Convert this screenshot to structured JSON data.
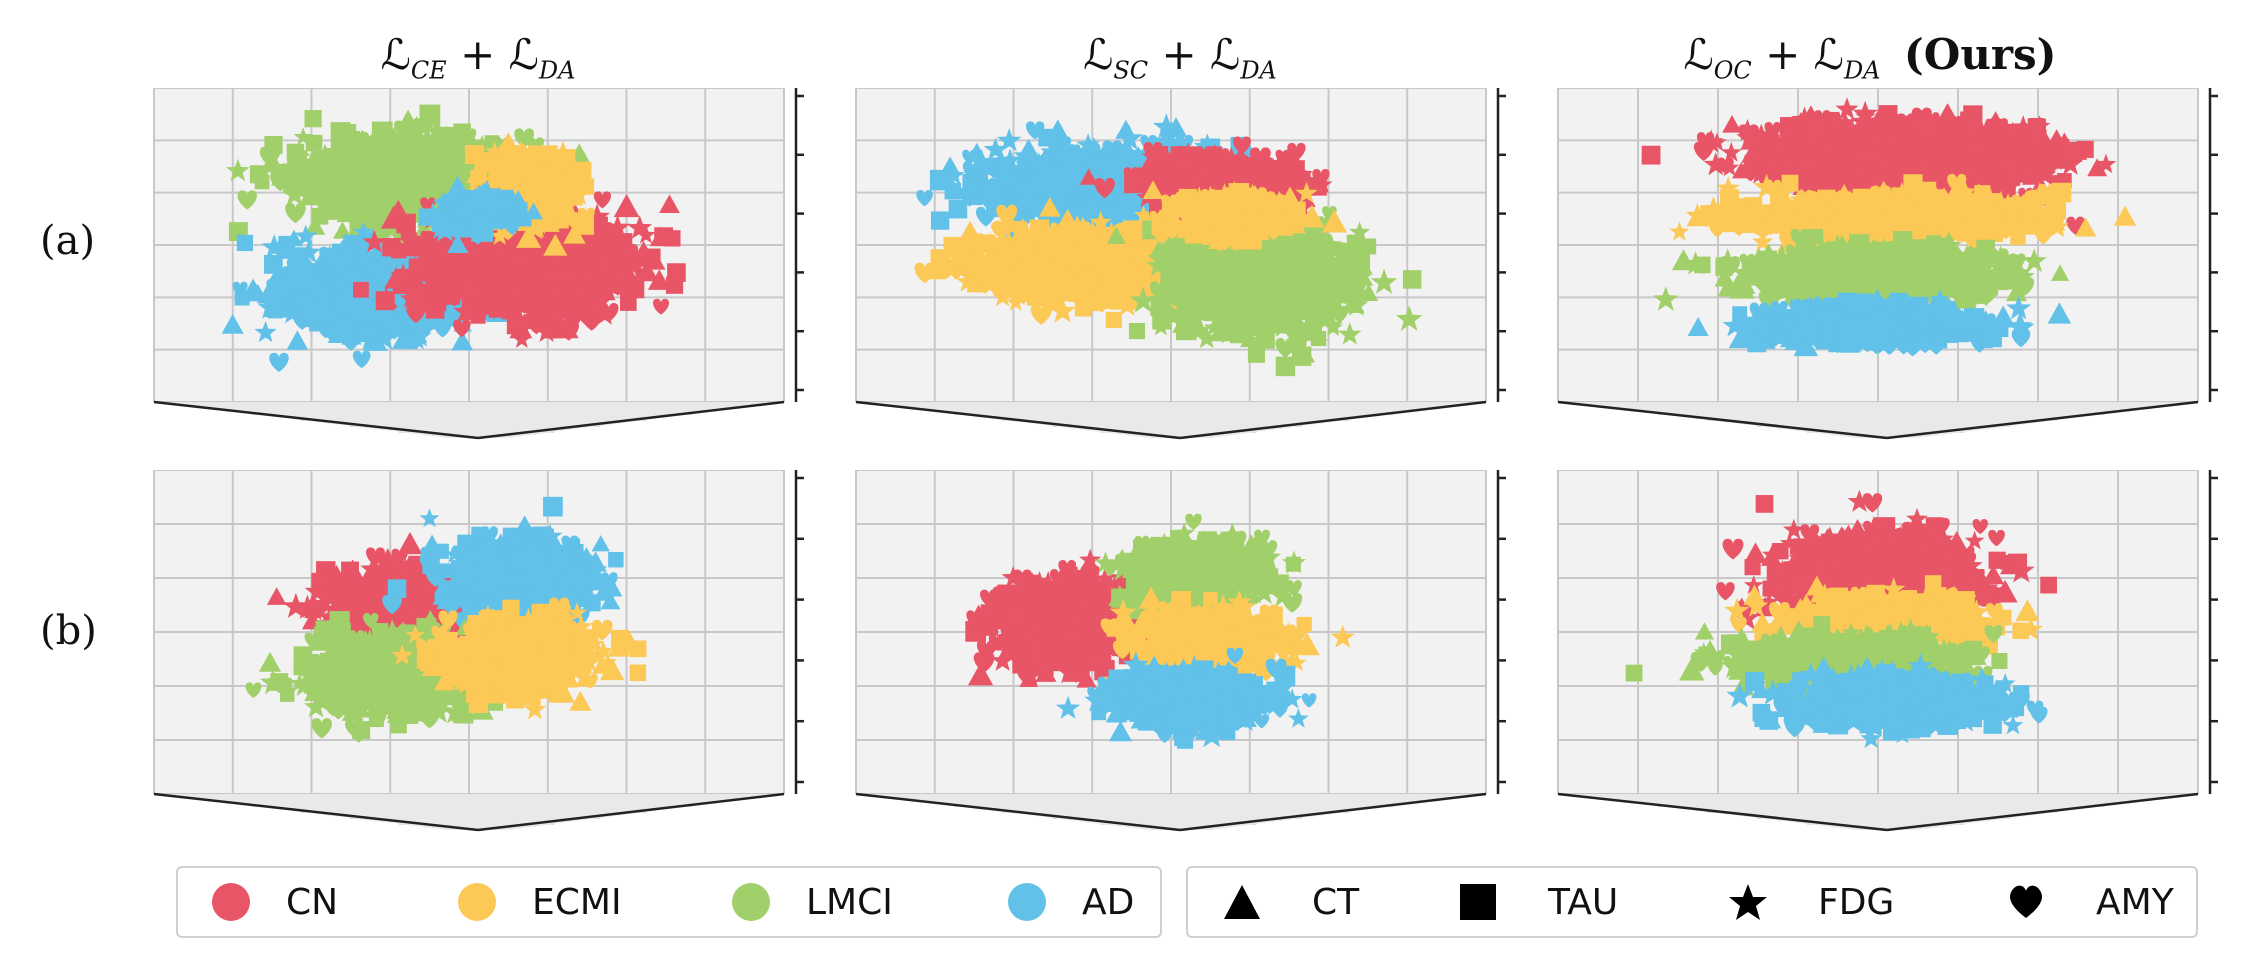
{
  "columns": [
    {
      "id": "ce",
      "title_main": "ℒ",
      "title_sub": "CE",
      "title_plus": "+ ℒ",
      "title_sub2": "DA",
      "title_bold": ""
    },
    {
      "id": "sc",
      "title_main": "ℒ",
      "title_sub": "SC",
      "title_plus": "+ ℒ",
      "title_sub2": "DA",
      "title_bold": ""
    },
    {
      "id": "oc",
      "title_main": "ℒ",
      "title_sub": "OC",
      "title_plus": "+ ℒ",
      "title_sub2": "DA",
      "title_bold": "(Ours)"
    }
  ],
  "rows": [
    {
      "id": "a",
      "label": "(a)"
    },
    {
      "id": "b",
      "label": "(b)"
    }
  ],
  "colors": {
    "CN": "#e85566",
    "ECMI": "#fcc956",
    "LMCI": "#a1cf6a",
    "AD": "#62c1e8",
    "grid": "#c8c8c8",
    "pane": "#f2f2f2",
    "axis": "#222222"
  },
  "legend": {
    "classes": [
      {
        "name": "CN",
        "color": "#e85566"
      },
      {
        "name": "ECMI",
        "color": "#fcc956"
      },
      {
        "name": "LMCI",
        "color": "#a1cf6a"
      },
      {
        "name": "AD",
        "color": "#62c1e8"
      }
    ],
    "modalities": [
      {
        "name": "CT",
        "icon": "triangle-icon"
      },
      {
        "name": "TAU",
        "icon": "square-icon"
      },
      {
        "name": "FDG",
        "icon": "star-icon"
      },
      {
        "name": "AMY",
        "icon": "heart-icon"
      }
    ]
  },
  "chart_data": [
    {
      "type": "scatter",
      "panel": "a-ce",
      "projection": "3d",
      "grid": true,
      "clusters": [
        {
          "class": "LMCI",
          "center": [
            0.38,
            0.28
          ],
          "spread": [
            0.17,
            0.12
          ]
        },
        {
          "class": "AD",
          "center": [
            0.32,
            0.68
          ],
          "spread": [
            0.14,
            0.12
          ]
        },
        {
          "class": "CN",
          "center": [
            0.62,
            0.58
          ],
          "spread": [
            0.16,
            0.15
          ]
        },
        {
          "class": "ECMI",
          "center": [
            0.62,
            0.32
          ],
          "spread": [
            0.07,
            0.1
          ]
        },
        {
          "class": "AD",
          "center": [
            0.52,
            0.4
          ],
          "spread": [
            0.06,
            0.05
          ]
        }
      ]
    },
    {
      "type": "scatter",
      "panel": "a-sc",
      "projection": "3d",
      "grid": true,
      "clusters": [
        {
          "class": "AD",
          "center": [
            0.38,
            0.3
          ],
          "spread": [
            0.2,
            0.1
          ]
        },
        {
          "class": "ECMI",
          "center": [
            0.38,
            0.58
          ],
          "spread": [
            0.2,
            0.1
          ]
        },
        {
          "class": "LMCI",
          "center": [
            0.67,
            0.62
          ],
          "spread": [
            0.14,
            0.16
          ]
        },
        {
          "class": "CN",
          "center": [
            0.6,
            0.3
          ],
          "spread": [
            0.12,
            0.08
          ]
        },
        {
          "class": "ECMI",
          "center": [
            0.62,
            0.42
          ],
          "spread": [
            0.1,
            0.06
          ]
        }
      ]
    },
    {
      "type": "scatter",
      "panel": "a-oc",
      "projection": "3d",
      "grid": true,
      "clusters": [
        {
          "class": "CN",
          "center": [
            0.55,
            0.2
          ],
          "spread": [
            0.23,
            0.1
          ]
        },
        {
          "class": "ECMI",
          "center": [
            0.52,
            0.42
          ],
          "spread": [
            0.22,
            0.07
          ]
        },
        {
          "class": "LMCI",
          "center": [
            0.5,
            0.62
          ],
          "spread": [
            0.2,
            0.07
          ]
        },
        {
          "class": "AD",
          "center": [
            0.48,
            0.8
          ],
          "spread": [
            0.18,
            0.06
          ]
        }
      ]
    },
    {
      "type": "scatter",
      "panel": "b-ce",
      "projection": "3d",
      "grid": true,
      "clusters": [
        {
          "class": "CN",
          "center": [
            0.38,
            0.42
          ],
          "spread": [
            0.13,
            0.1
          ]
        },
        {
          "class": "AD",
          "center": [
            0.6,
            0.35
          ],
          "spread": [
            0.11,
            0.12
          ]
        },
        {
          "class": "LMCI",
          "center": [
            0.36,
            0.65
          ],
          "spread": [
            0.13,
            0.11
          ]
        },
        {
          "class": "ECMI",
          "center": [
            0.6,
            0.6
          ],
          "spread": [
            0.12,
            0.1
          ]
        }
      ]
    },
    {
      "type": "scatter",
      "panel": "b-sc",
      "projection": "3d",
      "grid": true,
      "clusters": [
        {
          "class": "CN",
          "center": [
            0.33,
            0.48
          ],
          "spread": [
            0.13,
            0.12
          ]
        },
        {
          "class": "LMCI",
          "center": [
            0.55,
            0.32
          ],
          "spread": [
            0.1,
            0.1
          ]
        },
        {
          "class": "ECMI",
          "center": [
            0.57,
            0.55
          ],
          "spread": [
            0.12,
            0.08
          ]
        },
        {
          "class": "AD",
          "center": [
            0.55,
            0.75
          ],
          "spread": [
            0.12,
            0.08
          ]
        }
      ]
    },
    {
      "type": "scatter",
      "panel": "b-oc",
      "projection": "3d",
      "grid": true,
      "clusters": [
        {
          "class": "CN",
          "center": [
            0.5,
            0.33
          ],
          "spread": [
            0.15,
            0.12
          ]
        },
        {
          "class": "ECMI",
          "center": [
            0.52,
            0.48
          ],
          "spread": [
            0.15,
            0.07
          ]
        },
        {
          "class": "LMCI",
          "center": [
            0.45,
            0.62
          ],
          "spread": [
            0.18,
            0.07
          ]
        },
        {
          "class": "AD",
          "center": [
            0.52,
            0.75
          ],
          "spread": [
            0.17,
            0.07
          ]
        }
      ]
    }
  ]
}
